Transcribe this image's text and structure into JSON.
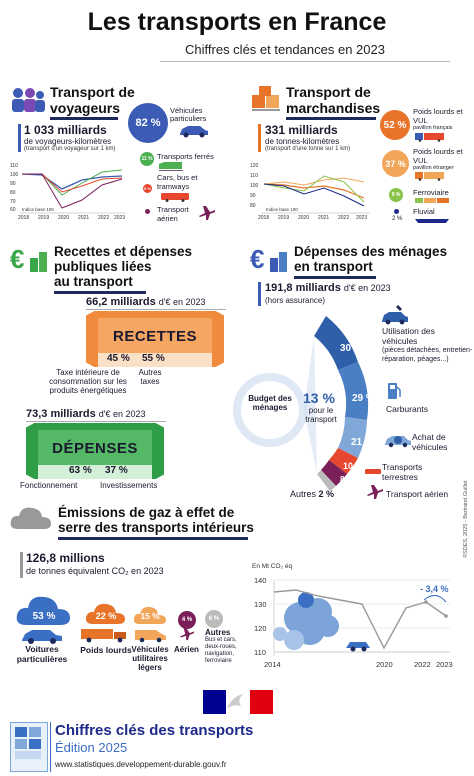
{
  "header": {
    "title": "Les transports en France",
    "subtitle": "Chiffres clés et tendances en 2023"
  },
  "voyageurs": {
    "title_line1": "Transport de",
    "title_line2": "voyageurs",
    "value": "1 033 milliards",
    "unit": "de voyageurs-kilomètres",
    "note": "(transport d'un voyageur sur 1 km)",
    "chart_index": "Indice base 100",
    "y_ticks": [
      "110",
      "100",
      "90",
      "80",
      "70",
      "60"
    ],
    "x_ticks": [
      "2018",
      "2019",
      "2020",
      "2021",
      "2022",
      "2023"
    ],
    "shares": [
      {
        "pct": "82 %",
        "label": "Véhicules particuliers",
        "color": "#3b5bb5"
      },
      {
        "pct": "11 %",
        "label": "Transports ferrés",
        "color": "#4caf50"
      },
      {
        "pct": "5 %",
        "label": "Cars, bus et tramways",
        "color": "#e8472f"
      },
      {
        "pct": "1 %",
        "label": "Transport aérien",
        "color": "#7b1f5a"
      }
    ]
  },
  "marchandises": {
    "title_line1": "Transport de",
    "title_line2": "marchandises",
    "value": "331 milliards",
    "unit": "de tonnes-kilomètres",
    "note": "(transport d'une tonne sur 1 km)",
    "chart_index": "Indice base 100",
    "y_ticks": [
      "120",
      "110",
      "100",
      "90",
      "80"
    ],
    "x_ticks": [
      "2018",
      "2019",
      "2020",
      "2021",
      "2022",
      "2023"
    ],
    "shares": [
      {
        "pct": "52 %",
        "label": "Poids lourds et VUL",
        "sub": "pavillon français",
        "color": "#e8742a"
      },
      {
        "pct": "37 %",
        "label": "Poids lourds et VUL",
        "sub": "pavillon étranger",
        "color": "#f2a65a"
      },
      {
        "pct": "9 %",
        "label": "Ferroviaire",
        "color": "#8bc34a"
      },
      {
        "pct": "2 %",
        "label": "Fluvial",
        "color": "#1d2a8a"
      }
    ]
  },
  "recettes": {
    "title_line1": "Recettes et dépenses",
    "title_line2": "publiques liées",
    "title_line3": "au transport",
    "recettes_value": "66,2 milliards",
    "recettes_unit": "d'€ en 2023",
    "recettes_label": "RECETTES",
    "r1_pct": "45 %",
    "r1_label": "Taxe intérieure de consommation sur les produits énergétiques",
    "r2_pct": "55 %",
    "r2_label": "Autres taxes",
    "depenses_value": "73,3 milliards",
    "depenses_unit": "d'€ en 2023",
    "depenses_label": "DÉPENSES",
    "d1_pct": "63 %",
    "d1_label": "Fonctionnement",
    "d2_pct": "37 %",
    "d2_label": "Investissements"
  },
  "menages": {
    "title_line1": "Dépenses des ménages",
    "title_line2": "en transport",
    "value": "191,8 milliards",
    "unit": "d'€ en 2023",
    "note": "(hors assurance)",
    "budget_label": "Budget des ménages",
    "center_pct": "13 %",
    "center_label": "pour le transport",
    "segments": [
      {
        "pct": "30 %",
        "label": "Utilisation des véhicules",
        "sub": "(pièces détachées, entretien-réparation, péages...)",
        "color": "#2f5fa8"
      },
      {
        "pct": "29 %",
        "label": "Carburants",
        "color": "#4a7fc4"
      },
      {
        "pct": "21 %",
        "label": "Achat de véhicules",
        "color": "#7fa8d8"
      },
      {
        "pct": "10 %",
        "label": "Transports terrestres",
        "color": "#e8472f"
      },
      {
        "pct": "8 %",
        "label": "Transport aérien",
        "color": "#7b1f5a"
      }
    ],
    "autres_label": "Autres",
    "autres_pct": "2 %"
  },
  "ges": {
    "title_line1": "Émissions de gaz à effet de",
    "title_line2": "serre des transports intérieurs",
    "value": "126,8 millions",
    "unit": "de tonnes équivalent CO₂ en 2023",
    "chart_unit": "En Mt CO₂ éq",
    "y_ticks": [
      "140",
      "130",
      "120",
      "110"
    ],
    "x_ticks": [
      "2014",
      "2020",
      "2022",
      "2023"
    ],
    "change": "- 3,4 %",
    "shares": [
      {
        "pct": "53 %",
        "label": "Voitures particulières",
        "color": "#3b6fc4"
      },
      {
        "pct": "22 %",
        "label": "Poids lourds",
        "color": "#e8742a"
      },
      {
        "pct": "15 %",
        "label": "Véhicules utilitaires légers",
        "color": "#f2a65a"
      },
      {
        "pct": "4 %",
        "label": "Aérien",
        "color": "#7b1f5a"
      },
      {
        "pct": "6 %",
        "label": "Autres",
        "sub": "Bus et cars, deux-roues, navigation, ferroviaire",
        "color": "#999999"
      }
    ],
    "credit": "©SDES, 2025 - Bertrand Guillet"
  },
  "footer": {
    "title": "Chiffres clés des transports",
    "edition": "Édition 2025",
    "url": "www.statistiques.developpement-durable.gouv.fr"
  },
  "colors": {
    "navy": "#1d2a5b",
    "blue": "#3b5bb5",
    "orange": "#e8742a",
    "green": "#3aa64a",
    "red": "#e8472f",
    "purple": "#7b1f5a"
  }
}
